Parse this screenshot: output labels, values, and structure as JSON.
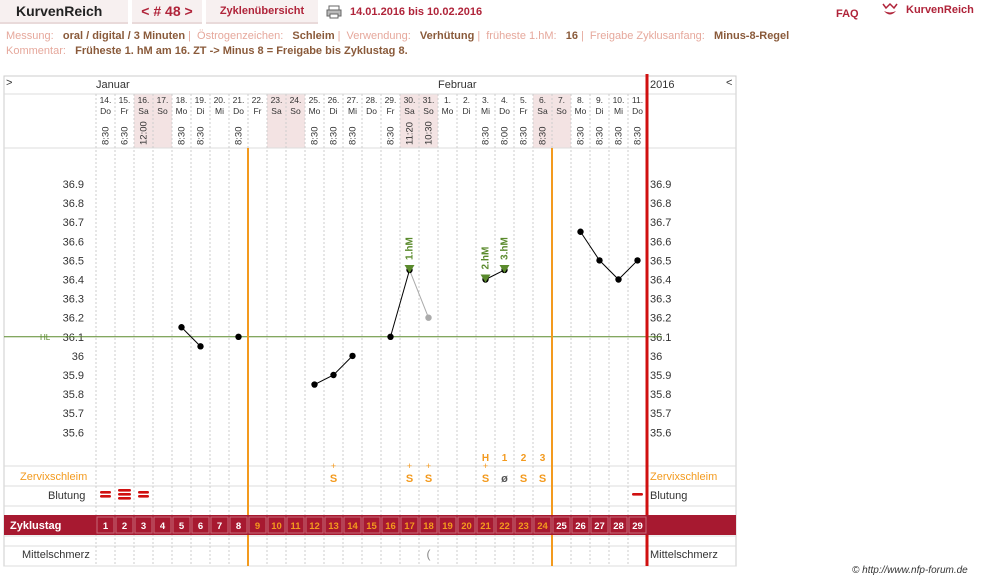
{
  "header": {
    "brand": "KurvenReich",
    "cycle_label": "< # 48 >",
    "overview_label": "Zyklenübersicht",
    "date_range": "14.01.2016 bis 10.02.2016",
    "faq_label": "FAQ",
    "logo_text": "KurvenReich"
  },
  "info": {
    "measurement_label": "Messung:",
    "measurement_value": "oral / digital / 3 Minuten",
    "estrogen_label": "Östrogenzeichen:",
    "estrogen_value": "Schleim",
    "usage_label": "Verwendung:",
    "usage_value": "Verhütung",
    "earliest_label": "früheste 1.hM:",
    "earliest_value": "16",
    "release_label": "Freigabe Zyklusanfang:",
    "release_value": "Minus-8-Regel",
    "comment_label": "Kommentar:",
    "comment_value": "Früheste 1. hM am 16. ZT -> Minus 8 = Freigabe bis Zyklustag 8."
  },
  "chart_data": {
    "type": "line",
    "months": [
      {
        "label": "Januar",
        "start_index": 0
      },
      {
        "label": "Februar",
        "start_index": 18
      }
    ],
    "year": "2016",
    "left_arrow": ">",
    "right_arrow": "<",
    "days": [
      {
        "date": "14.",
        "dow": "Do",
        "time": "8:30",
        "cd": "1",
        "weekend": false
      },
      {
        "date": "15.",
        "dow": "Fr",
        "time": "6:30",
        "cd": "2",
        "weekend": false
      },
      {
        "date": "16.",
        "dow": "Sa",
        "time": "12:00",
        "cd": "3",
        "weekend": true
      },
      {
        "date": "17.",
        "dow": "So",
        "time": "",
        "cd": "4",
        "weekend": true
      },
      {
        "date": "18.",
        "dow": "Mo",
        "time": "8:30",
        "cd": "5",
        "weekend": false
      },
      {
        "date": "19.",
        "dow": "Di",
        "time": "8:30",
        "cd": "6",
        "weekend": false
      },
      {
        "date": "20.",
        "dow": "Mi",
        "time": "",
        "cd": "7",
        "weekend": false
      },
      {
        "date": "21.",
        "dow": "Do",
        "time": "8:30",
        "cd": "8",
        "weekend": false
      },
      {
        "date": "22.",
        "dow": "Fr",
        "time": "",
        "cd": "9",
        "weekend": false
      },
      {
        "date": "23.",
        "dow": "Sa",
        "time": "",
        "cd": "10",
        "weekend": true
      },
      {
        "date": "24.",
        "dow": "So",
        "time": "",
        "cd": "11",
        "weekend": true
      },
      {
        "date": "25.",
        "dow": "Mo",
        "time": "8:30",
        "cd": "12",
        "weekend": false
      },
      {
        "date": "26.",
        "dow": "Di",
        "time": "8:30",
        "cd": "13",
        "weekend": false
      },
      {
        "date": "27.",
        "dow": "Mi",
        "time": "8:30",
        "cd": "14",
        "weekend": false
      },
      {
        "date": "28.",
        "dow": "Do",
        "time": "",
        "cd": "15",
        "weekend": false
      },
      {
        "date": "29.",
        "dow": "Fr",
        "time": "8:30",
        "cd": "16",
        "weekend": false
      },
      {
        "date": "30.",
        "dow": "Sa",
        "time": "11:20",
        "cd": "17",
        "weekend": true
      },
      {
        "date": "31.",
        "dow": "So",
        "time": "10:30",
        "cd": "18",
        "weekend": true
      },
      {
        "date": "1.",
        "dow": "Mo",
        "time": "",
        "cd": "19",
        "weekend": false
      },
      {
        "date": "2.",
        "dow": "Di",
        "time": "",
        "cd": "20",
        "weekend": false
      },
      {
        "date": "3.",
        "dow": "Mi",
        "time": "8:30",
        "cd": "21",
        "weekend": false
      },
      {
        "date": "4.",
        "dow": "Do",
        "time": "8:00",
        "cd": "22",
        "weekend": false
      },
      {
        "date": "5.",
        "dow": "Fr",
        "time": "8:30",
        "cd": "23",
        "weekend": false
      },
      {
        "date": "6.",
        "dow": "Sa",
        "time": "8:30",
        "cd": "24",
        "weekend": true
      },
      {
        "date": "7.",
        "dow": "So",
        "time": "",
        "cd": "25",
        "weekend": true
      },
      {
        "date": "8.",
        "dow": "Mo",
        "time": "8:30",
        "cd": "26",
        "weekend": false
      },
      {
        "date": "9.",
        "dow": "Di",
        "time": "8:30",
        "cd": "27",
        "weekend": false
      },
      {
        "date": "10.",
        "dow": "Mi",
        "time": "8:30",
        "cd": "28",
        "weekend": false
      },
      {
        "date": "11.",
        "dow": "Do",
        "time": "8:30",
        "cd": "29",
        "weekend": false
      }
    ],
    "y_ticks": [
      "36.9",
      "36.8",
      "36.7",
      "36.6",
      "36.5",
      "36.4",
      "36.3",
      "36.2",
      "36.1",
      "36",
      "35.9",
      "35.8",
      "35.7",
      "35.6"
    ],
    "ylim": [
      35.6,
      36.9
    ],
    "hl_label": "HL",
    "hl_value": 36.1,
    "segments": [
      [
        {
          "i": 4,
          "t": 36.15
        },
        {
          "i": 5,
          "t": 36.05
        }
      ],
      [
        {
          "i": 7,
          "t": 36.1
        }
      ],
      [
        {
          "i": 11,
          "t": 35.85
        },
        {
          "i": 12,
          "t": 35.9
        },
        {
          "i": 13,
          "t": 36.0
        }
      ],
      [
        {
          "i": 15,
          "t": 36.1
        },
        {
          "i": 16,
          "t": 36.45
        }
      ],
      [
        {
          "i": 20,
          "t": 36.4
        },
        {
          "i": 21,
          "t": 36.45
        }
      ],
      [
        {
          "i": 25,
          "t": 36.65
        },
        {
          "i": 26,
          "t": 36.5
        },
        {
          "i": 27,
          "t": 36.4
        },
        {
          "i": 28,
          "t": 36.5
        }
      ]
    ],
    "excluded": [
      {
        "i": 17,
        "t": 36.2,
        "from_i": 16,
        "from_t": 36.45
      }
    ],
    "markers": [
      {
        "i": 16,
        "t": 36.45,
        "label": "1.hM"
      },
      {
        "i": 20,
        "t": 36.4,
        "label": "2.hM"
      },
      {
        "i": 21,
        "t": 36.45,
        "label": "3.hM"
      }
    ],
    "mucus_counts": [
      {
        "i": 20,
        "label": "H"
      },
      {
        "i": 21,
        "label": "1"
      },
      {
        "i": 22,
        "label": "2"
      },
      {
        "i": 23,
        "label": "3"
      }
    ],
    "mucus_label": "Zervixschleim",
    "mucus": [
      {
        "i": 12,
        "sym": "S+"
      },
      {
        "i": 16,
        "sym": "S+"
      },
      {
        "i": 17,
        "sym": "S+"
      },
      {
        "i": 20,
        "sym": "S+"
      },
      {
        "i": 21,
        "sym": "ø"
      },
      {
        "i": 22,
        "sym": "S"
      },
      {
        "i": 23,
        "sym": "S"
      }
    ],
    "bleeding_label": "Blutung",
    "bleeding": [
      {
        "i": 0,
        "level": "heavy"
      },
      {
        "i": 1,
        "level": "very_heavy"
      },
      {
        "i": 2,
        "level": "heavy"
      },
      {
        "i": 28,
        "level": "light"
      }
    ],
    "cycle_day_label": "Zyklustag",
    "mittelschmerz_label": "Mittelschmerz",
    "mittelschmerz": [
      {
        "i": 17,
        "sym": "("
      }
    ],
    "orange_lines": [
      7.5,
      23.5
    ],
    "red_line": 28.5,
    "colors": {
      "accent": "#b0243a",
      "orange": "#f39a1e",
      "green": "#5a8a2c",
      "cycle_bar": "#a71930",
      "weekend": "#f3e3e3"
    }
  },
  "footer": {
    "copyright": "© http://www.nfp-forum.de"
  }
}
